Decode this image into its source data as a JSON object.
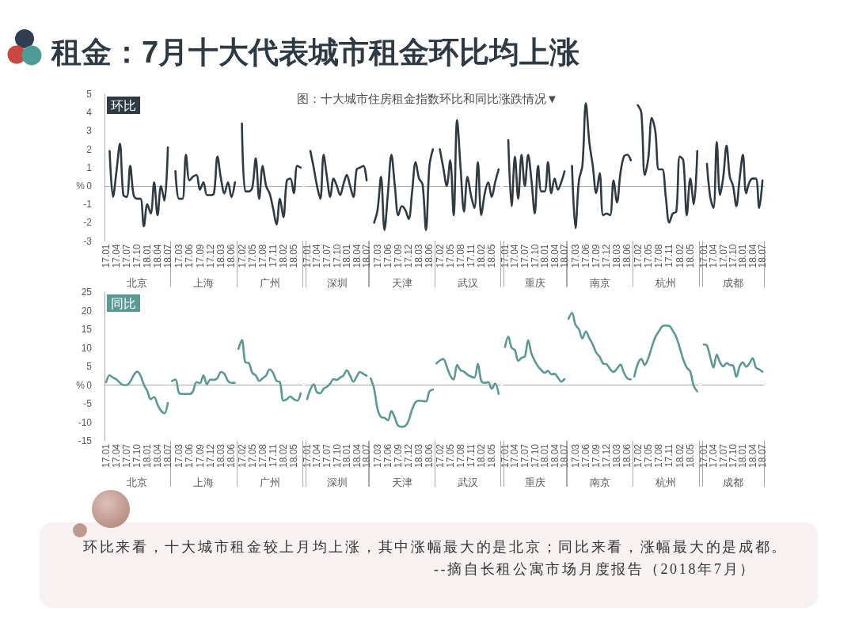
{
  "chart_data": [
    {
      "type": "other",
      "title": "租金：7月十大代表城市租金环比均上涨",
      "subtitle": "图：十大城市住房租金指数环比和同比涨跌情况▼"
    },
    {
      "type": "line",
      "title": "环比",
      "ylabel": "%",
      "xlabel": "北京",
      "categories": [
        "17.01",
        null,
        null,
        "17.04",
        null,
        null,
        "17.07",
        null,
        null,
        "17.10",
        null,
        null,
        "18.01",
        null,
        null,
        "18.04",
        null,
        null,
        "18.07"
      ],
      "values": [
        null,
        1.9,
        -0.6,
        0.8,
        2.3,
        -0.5,
        -0.6,
        1.1,
        -0.5,
        -0.7,
        -0.7,
        -2.2,
        -1.0,
        -1.5,
        0.2,
        -1.6,
        0.0,
        -0.8,
        2.1
      ],
      "color": "#2f3a43",
      "ylim": [
        -3,
        5
      ],
      "yticks": [
        -3,
        -2,
        -1,
        0,
        1,
        2,
        3,
        4,
        5
      ]
    },
    {
      "type": "line",
      "xlabel": "上海",
      "categories": [
        null,
        null,
        "17.03",
        null,
        null,
        "17.06",
        null,
        null,
        "17.09",
        null,
        null,
        "17.12",
        null,
        null,
        "18.03",
        null,
        null,
        "18.06",
        null
      ],
      "values": [
        null,
        0.8,
        -0.7,
        -0.7,
        1.7,
        0.3,
        0.5,
        0.6,
        -0.2,
        0.2,
        -0.5,
        -0.5,
        -0.4,
        1.6,
        0.4,
        -0.4,
        0.2,
        -0.6,
        0.2
      ],
      "color": "#2f3a43",
      "ylim": [
        -3,
        5
      ],
      "yticks": [
        -3,
        -2,
        -1,
        0,
        1,
        2,
        3,
        4,
        5
      ],
      "tick_labels": "x"
    },
    {
      "type": "line",
      "xlabel": "广州",
      "categories": [
        null,
        "17.02",
        null,
        null,
        "17.05",
        null,
        null,
        "17.08",
        null,
        null,
        "17.11",
        null,
        null,
        "18.02",
        null,
        null,
        "18.05",
        null,
        null
      ],
      "values": [
        null,
        3.4,
        -0.3,
        -0.3,
        -0.1,
        1.5,
        -0.7,
        1.1,
        0.0,
        -0.4,
        -1.2,
        -2.1,
        -0.7,
        -1.7,
        0.3,
        0.4,
        -0.4,
        1.1,
        1.0
      ],
      "color": "#2f3a43",
      "ylim": [
        -3,
        5
      ],
      "yticks": [
        -3,
        -2,
        -1,
        0,
        1,
        2,
        3,
        4,
        5
      ],
      "tick_labels": "x"
    },
    {
      "type": "line",
      "xlabel": "深圳",
      "categories": [
        "17.01",
        null,
        null,
        "17.04",
        null,
        null,
        "17.07",
        null,
        null,
        "17.10",
        null,
        null,
        "18.01",
        null,
        null,
        "18.04",
        null,
        null,
        "18.07"
      ],
      "values": [
        null,
        1.9,
        1.0,
        0.0,
        -0.7,
        1.7,
        0.5,
        -0.6,
        0.4,
        0.0,
        -0.5,
        0.1,
        0.6,
        0.0,
        -0.6,
        0.9,
        1.0,
        1.1,
        0.3
      ],
      "color": "#2f3a43",
      "ylim": [
        -3,
        5
      ],
      "yticks": [
        -3,
        -2,
        -1,
        0,
        1,
        2,
        3,
        4,
        5
      ],
      "tick_labels": "x"
    },
    {
      "type": "line",
      "xlabel": "天津",
      "categories": [
        null,
        null,
        "17.03",
        null,
        null,
        "17.06",
        null,
        null,
        "17.09",
        null,
        null,
        "17.12",
        null,
        null,
        "18.03",
        null,
        null,
        "18.06",
        null
      ],
      "values": [
        null,
        -2.0,
        -1.3,
        0.5,
        -2.4,
        -0.4,
        1.7,
        0.0,
        -1.6,
        -1.1,
        -1.3,
        -1.8,
        -0.3,
        1.3,
        0.4,
        0.1,
        -2.4,
        1.1,
        2.0
      ],
      "color": "#2f3a43",
      "ylim": [
        -3,
        5
      ],
      "yticks": [
        -3,
        -2,
        -1,
        0,
        1,
        2,
        3,
        4,
        5
      ],
      "tick_labels": "x"
    },
    {
      "type": "line",
      "xlabel": "武汉",
      "categories": [
        null,
        "17.02",
        null,
        null,
        "17.05",
        null,
        null,
        "17.08",
        null,
        null,
        "17.11",
        null,
        null,
        "18.02",
        null,
        null,
        "18.05",
        null,
        null
      ],
      "values": [
        null,
        2.0,
        1.0,
        0.0,
        1.4,
        -1.6,
        3.6,
        1.0,
        -1.4,
        0.5,
        -0.5,
        -1.2,
        1.3,
        -1.6,
        -0.4,
        0.2,
        -0.6,
        0.2,
        0.9
      ],
      "color": "#2f3a43",
      "ylim": [
        -3,
        5
      ],
      "yticks": [
        -3,
        -2,
        -1,
        0,
        1,
        2,
        3,
        4,
        5
      ],
      "tick_labels": "x"
    },
    {
      "type": "line",
      "xlabel": "重庆",
      "categories": [
        "17.01",
        null,
        null,
        "17.04",
        null,
        null,
        "17.07",
        null,
        null,
        "17.10",
        null,
        null,
        "18.01",
        null,
        null,
        "18.04",
        null,
        null,
        "18.07"
      ],
      "values": [
        null,
        2.5,
        -1.1,
        1.6,
        -0.7,
        1.7,
        0.0,
        1.7,
        0.3,
        -1.5,
        1.1,
        -0.3,
        -0.3,
        1.3,
        -0.4,
        0.4,
        -0.2,
        0.2,
        0.8
      ],
      "color": "#2f3a43",
      "ylim": [
        -3,
        5
      ],
      "yticks": [
        -3,
        -2,
        -1,
        0,
        1,
        2,
        3,
        4,
        5
      ],
      "tick_labels": "x"
    },
    {
      "type": "line",
      "xlabel": "南京",
      "categories": [
        null,
        null,
        "17.03",
        null,
        null,
        "17.06",
        null,
        null,
        "17.09",
        null,
        null,
        "17.12",
        null,
        null,
        "18.03",
        null,
        null,
        "18.06",
        null
      ],
      "values": [
        null,
        1.1,
        -2.3,
        0.3,
        1.1,
        4.5,
        2.4,
        1.1,
        -0.4,
        0.7,
        -1.6,
        -1.5,
        -1.6,
        0.3,
        -0.9,
        0.7,
        1.6,
        1.7,
        1.4
      ],
      "color": "#2f3a43",
      "ylim": [
        -3,
        5
      ],
      "yticks": [
        -3,
        -2,
        -1,
        0,
        1,
        2,
        3,
        4,
        5
      ],
      "tick_labels": "x"
    },
    {
      "type": "line",
      "xlabel": "杭州",
      "categories": [
        null,
        "17.02",
        null,
        null,
        "17.05",
        null,
        null,
        "17.08",
        null,
        null,
        "17.11",
        null,
        null,
        "18.02",
        null,
        null,
        "18.05",
        null,
        null
      ],
      "values": [
        null,
        4.4,
        4.0,
        0.6,
        1.5,
        3.7,
        3.0,
        0.9,
        0.9,
        -0.6,
        -2.0,
        -1.5,
        -1.4,
        1.6,
        1.4,
        -1.6,
        0.4,
        -1.0,
        1.9
      ],
      "color": "#2f3a43",
      "ylim": [
        -3,
        5
      ],
      "yticks": [
        -3,
        -2,
        -1,
        0,
        1,
        2,
        3,
        4,
        5
      ],
      "tick_labels": "x"
    },
    {
      "type": "line",
      "xlabel": "成都",
      "categories": [
        "17.01",
        null,
        null,
        "17.04",
        null,
        null,
        "17.07",
        null,
        null,
        "17.10",
        null,
        null,
        "18.01",
        null,
        null,
        "18.04",
        null,
        null,
        "18.07"
      ],
      "values": [
        null,
        1.2,
        -0.6,
        -1.2,
        2.4,
        -0.5,
        0.5,
        2.2,
        0.5,
        0.0,
        -1.1,
        0.4,
        1.7,
        -0.4,
        0.2,
        0.4,
        0.4,
        -1.2,
        0.3
      ],
      "color": "#2f3a43",
      "ylim": [
        -3,
        5
      ],
      "yticks": [
        -3,
        -2,
        -1,
        0,
        1,
        2,
        3,
        4,
        5
      ],
      "tick_labels": "x"
    },
    {
      "type": "line",
      "title": "同比",
      "ylabel": "%",
      "xlabel": "北京",
      "categories": [
        "17.01",
        null,
        null,
        "17.04",
        null,
        null,
        "17.07",
        null,
        null,
        "17.10",
        null,
        null,
        "18.01",
        null,
        null,
        "18.04",
        null,
        null,
        "18.07"
      ],
      "values": [
        0.8,
        2.6,
        2.0,
        1.5,
        0.6,
        0.0,
        0.0,
        0.9,
        2.6,
        3.6,
        2.6,
        0.1,
        -1.6,
        -3.8,
        -3.2,
        -5.3,
        -6.9,
        -7.6,
        -4.8
      ],
      "color": "#5b9a94",
      "ylim": [
        -15,
        25
      ],
      "yticks": [
        -15,
        -10,
        -5,
        0,
        5,
        10,
        15,
        20,
        25
      ]
    },
    {
      "type": "line",
      "xlabel": "上海",
      "categories": [
        null,
        null,
        "17.03",
        null,
        null,
        "17.06",
        null,
        null,
        "17.09",
        null,
        null,
        "17.12",
        null,
        null,
        "18.03",
        null,
        null,
        "18.06",
        null
      ],
      "values": [
        1.1,
        1.5,
        -2.1,
        -2.4,
        -2.4,
        -2.4,
        -1.7,
        0.8,
        0.5,
        2.6,
        0.2,
        1.5,
        1.4,
        1.9,
        3.5,
        3.0,
        1.1,
        0.6,
        0.6
      ],
      "color": "#5b9a94",
      "ylim": [
        -15,
        25
      ],
      "yticks": [
        -15,
        -10,
        -5,
        0,
        5,
        10,
        15,
        20,
        25
      ],
      "tick_labels": "x"
    },
    {
      "type": "line",
      "xlabel": "广州",
      "categories": [
        null,
        "17.02",
        null,
        null,
        "17.05",
        null,
        null,
        "17.08",
        null,
        null,
        "17.11",
        null,
        null,
        "18.02",
        null,
        null,
        "18.05",
        null,
        null
      ],
      "values": [
        9.7,
        12.1,
        6.1,
        5.9,
        3.3,
        2.6,
        1.1,
        1.8,
        2.6,
        4.2,
        3.3,
        1.1,
        0.8,
        -4.2,
        -3.8,
        -3.1,
        -3.8,
        -4.2,
        -2.2
      ],
      "color": "#5b9a94",
      "ylim": [
        -15,
        25
      ],
      "yticks": [
        -15,
        -10,
        -5,
        0,
        5,
        10,
        15,
        20,
        25
      ],
      "tick_labels": "x"
    },
    {
      "type": "line",
      "xlabel": "深圳",
      "categories": [
        "17.01",
        null,
        null,
        "17.04",
        null,
        null,
        "17.07",
        null,
        null,
        "17.10",
        null,
        null,
        "18.01",
        null,
        null,
        "18.04",
        null,
        null,
        "18.07"
      ],
      "values": [
        -3.8,
        -1.2,
        0.2,
        -2.0,
        -2.2,
        -1.0,
        -0.5,
        0.4,
        1.6,
        1.4,
        2.0,
        2.6,
        4.0,
        2.5,
        0.9,
        2.3,
        3.5,
        3.0,
        2.5
      ],
      "color": "#5b9a94",
      "ylim": [
        -15,
        25
      ],
      "yticks": [
        -15,
        -10,
        -5,
        0,
        5,
        10,
        15,
        20,
        25
      ],
      "tick_labels": "x"
    },
    {
      "type": "line",
      "xlabel": "天津",
      "categories": [
        null,
        null,
        "17.03",
        null,
        null,
        "17.06",
        null,
        null,
        "17.09",
        null,
        null,
        "17.12",
        null,
        null,
        "18.03",
        null,
        null,
        "18.06",
        null
      ],
      "values": [
        1.8,
        -1.0,
        -6.5,
        -8.6,
        -8.8,
        -9.5,
        -7.0,
        -8.8,
        -11.0,
        -11.2,
        -11.0,
        -9.5,
        -6.5,
        -4.6,
        -4.2,
        -4.3,
        -4.4,
        -1.7,
        -1.2
      ],
      "color": "#5b9a94",
      "ylim": [
        -15,
        25
      ],
      "yticks": [
        -15,
        -10,
        -5,
        0,
        5,
        10,
        15,
        20,
        25
      ],
      "tick_labels": "x"
    },
    {
      "type": "line",
      "xlabel": "武汉",
      "categories": [
        null,
        "17.02",
        null,
        null,
        "17.05",
        null,
        null,
        "17.08",
        null,
        null,
        "17.11",
        null,
        null,
        "18.02",
        null,
        null,
        "18.05",
        null,
        null
      ],
      "values": [
        5.8,
        6.6,
        7.0,
        5.0,
        2.6,
        1.5,
        5.4,
        4.0,
        3.6,
        2.8,
        2.3,
        2.0,
        5.7,
        1.1,
        0.6,
        0.8,
        -1.0,
        0.4,
        -2.4
      ],
      "color": "#5b9a94",
      "ylim": [
        -15,
        25
      ],
      "yticks": [
        -15,
        -10,
        -5,
        0,
        5,
        10,
        15,
        20,
        25
      ],
      "tick_labels": "x"
    },
    {
      "type": "line",
      "xlabel": "重庆",
      "categories": [
        "17.01",
        null,
        null,
        "17.04",
        null,
        null,
        "17.07",
        null,
        null,
        "17.10",
        null,
        null,
        "18.01",
        null,
        null,
        "18.04",
        null,
        null,
        "18.07"
      ],
      "values": [
        10.2,
        13.0,
        10.0,
        9.4,
        6.5,
        7.3,
        7.7,
        12.0,
        8.5,
        6.5,
        5.0,
        4.0,
        3.3,
        3.8,
        2.9,
        3.0,
        2.0,
        0.9,
        1.6
      ],
      "color": "#5b9a94",
      "ylim": [
        -15,
        25
      ],
      "yticks": [
        -15,
        -10,
        -5,
        0,
        5,
        10,
        15,
        20,
        25
      ],
      "tick_labels": "x"
    },
    {
      "type": "line",
      "xlabel": "南京",
      "categories": [
        null,
        null,
        "17.03",
        null,
        null,
        "17.06",
        null,
        null,
        "17.09",
        null,
        null,
        "17.12",
        null,
        null,
        "18.03",
        null,
        null,
        "18.06",
        null
      ],
      "values": [
        17.8,
        19.4,
        16.2,
        15.0,
        12.5,
        14.4,
        12.6,
        10.9,
        8.7,
        7.6,
        5.8,
        5.6,
        4.3,
        3.5,
        4.4,
        5.5,
        3.3,
        1.8,
        1.5
      ],
      "color": "#5b9a94",
      "ylim": [
        -15,
        25
      ],
      "yticks": [
        -15,
        -10,
        -5,
        0,
        5,
        10,
        15,
        20,
        25
      ],
      "tick_labels": "x"
    },
    {
      "type": "line",
      "xlabel": "杭州",
      "categories": [
        null,
        "17.02",
        null,
        null,
        "17.05",
        null,
        null,
        "17.08",
        null,
        null,
        "17.11",
        null,
        null,
        "18.02",
        null,
        null,
        "18.05",
        null,
        null
      ],
      "values": [
        2.3,
        5.7,
        7.0,
        5.4,
        7.2,
        10.2,
        12.9,
        14.4,
        15.8,
        16.0,
        15.9,
        14.6,
        12.9,
        10.0,
        6.8,
        4.7,
        3.6,
        -0.3,
        -1.7
      ],
      "color": "#5b9a94",
      "ylim": [
        -15,
        25
      ],
      "yticks": [
        -15,
        -10,
        -5,
        0,
        5,
        10,
        15,
        20,
        25
      ],
      "tick_labels": "x"
    },
    {
      "type": "line",
      "xlabel": "成都",
      "categories": [
        "17.01",
        null,
        null,
        "17.04",
        null,
        null,
        "17.07",
        null,
        null,
        "17.10",
        null,
        null,
        "18.01",
        null,
        null,
        "18.04",
        null,
        null,
        "18.07"
      ],
      "values": [
        10.9,
        10.6,
        7.5,
        4.7,
        8.2,
        6.1,
        5.0,
        5.9,
        5.4,
        5.2,
        2.2,
        5.0,
        6.1,
        4.9,
        5.8,
        7.2,
        4.7,
        4.2,
        3.6
      ],
      "color": "#5b9a94",
      "ylim": [
        -15,
        25
      ],
      "yticks": [
        -15,
        -10,
        -5,
        0,
        5,
        10,
        15,
        20,
        25
      ],
      "tick_labels": "x"
    },
    {
      "type": "other",
      "annotations": [
        "环比来看，十大城市租金较上月均上涨，其中涨幅最大的是北京；同比来看，涨幅最大的是成都。",
        "--摘自长租公寓市场月度报告（2018年7月）"
      ]
    }
  ]
}
